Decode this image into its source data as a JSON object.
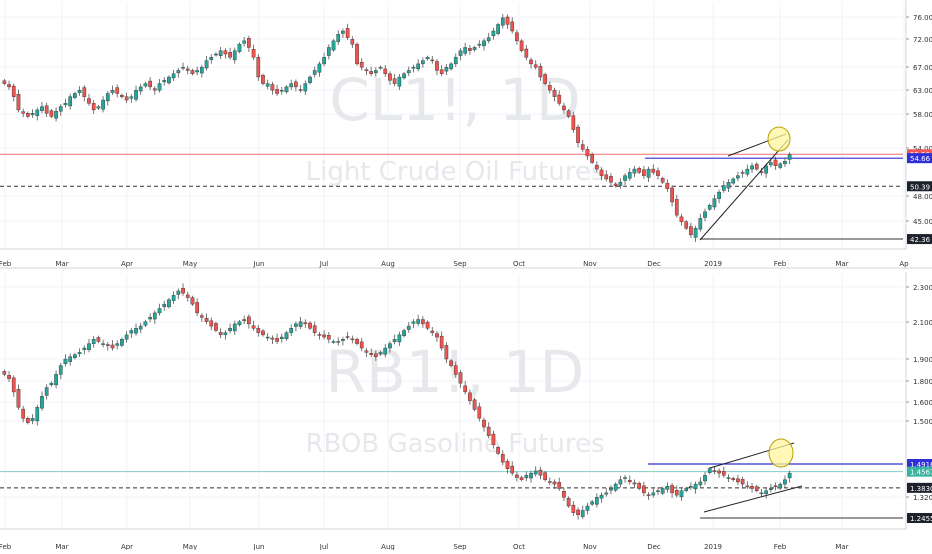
{
  "colors": {
    "up": "#26a69a",
    "down": "#ef5350",
    "wick": "#444444",
    "grid": "#f0f3fa",
    "axis_text": "#333333",
    "watermark": "#e6e8ec",
    "blue_line": "#3030d0",
    "red_line": "#f07070",
    "green_line": "#80cfc6",
    "circle_fill": "#fff59d",
    "circle_stroke": "#b8a000"
  },
  "chart_data": [
    {
      "type": "candlestick",
      "symbol": "CL1!, 1D",
      "title": "Light Crude Oil Futures",
      "y_ticks": [
        "76.00",
        "72.00",
        "67.00",
        "63.00",
        "58.00",
        "54.00",
        "48.00",
        "45.00"
      ],
      "ylim": [
        41,
        77.5
      ],
      "x_labels": [
        "Feb",
        "Mar",
        "Apr",
        "May",
        "Jun",
        "Jul",
        "Aug",
        "Sep",
        "Oct",
        "Nov",
        "Dec",
        "2019",
        "Feb",
        "Mar",
        "Ap"
      ],
      "price_badges": [
        {
          "label": "55.26",
          "value": 55.26,
          "style": "red"
        },
        {
          "label": "54.66",
          "value": 54.66,
          "style": "blue"
        },
        {
          "label": "50.39",
          "value": 50.39,
          "style": "dark"
        },
        {
          "label": "42.36",
          "value": 42.36,
          "style": "dark"
        }
      ],
      "levels": [
        {
          "value": 55.26,
          "kind": "red"
        },
        {
          "value": 54.66,
          "kind": "blue",
          "from_day": 300
        },
        {
          "value": 50.39,
          "kind": "dashed"
        },
        {
          "value": 42.36,
          "kind": "solid",
          "from_day": 328
        }
      ],
      "closes": [
        66.0,
        65.5,
        64.0,
        62.0,
        61.5,
        61.0,
        61.5,
        62.0,
        62.5,
        61.5,
        61.0,
        61.8,
        62.5,
        63.0,
        64.0,
        64.5,
        65.0,
        64.0,
        63.0,
        62.0,
        62.5,
        63.5,
        64.5,
        65.0,
        64.5,
        64.0,
        63.5,
        64.0,
        65.0,
        65.5,
        66.0,
        65.5,
        65.0,
        66.0,
        66.5,
        67.0,
        67.5,
        68.0,
        68.5,
        68.0,
        67.5,
        68.0,
        68.5,
        69.5,
        70.0,
        70.5,
        71.0,
        70.5,
        70.0,
        71.0,
        72.0,
        72.5,
        71.5,
        70.0,
        67.0,
        66.0,
        66.0,
        65.0,
        64.5,
        65.0,
        65.5,
        66.0,
        65.5,
        65.0,
        66.0,
        67.0,
        68.0,
        69.0,
        70.0,
        71.5,
        72.5,
        73.5,
        74.0,
        73.0,
        72.0,
        69.0,
        68.5,
        68.0,
        67.5,
        68.0,
        68.5,
        67.5,
        66.5,
        66.0,
        67.0,
        67.5,
        68.0,
        68.5,
        69.0,
        69.5,
        70.0,
        69.5,
        68.0,
        67.5,
        68.5,
        69.0,
        70.0,
        71.0,
        71.5,
        71.0,
        71.5,
        72.0,
        72.5,
        73.0,
        74.0,
        75.0,
        76.0,
        75.0,
        74.0,
        72.5,
        71.0,
        70.0,
        69.0,
        68.5,
        67.0,
        66.0,
        65.0,
        64.0,
        63.0,
        62.0,
        61.0,
        59.0,
        57.0,
        56.0,
        55.0,
        54.0,
        53.0,
        52.0,
        51.5,
        51.0,
        50.5,
        51.0,
        52.0,
        52.5,
        53.0,
        52.5,
        52.0,
        53.0,
        52.5,
        52.0,
        51.0,
        50.0,
        48.0,
        46.0,
        45.0,
        44.0,
        43.0,
        44.0,
        45.5,
        46.5,
        47.5,
        48.5,
        49.5,
        50.5,
        51.0,
        51.5,
        52.0,
        52.5,
        53.0,
        53.5,
        53.0,
        52.5,
        53.5,
        54.0,
        53.5,
        53.8,
        54.2,
        55.2
      ]
    },
    {
      "type": "candlestick",
      "symbol": "RB1!, 1D",
      "title": "RBOB Gasoline Futures",
      "y_ticks": [
        "2.3000",
        "2.1000",
        "1.9000",
        "1.8000",
        "1.6000",
        "1.5000",
        "1.3200"
      ],
      "ylim": [
        1.2,
        2.33
      ],
      "x_labels": [
        "Feb",
        "Mar",
        "Apr",
        "May",
        "Jun",
        "Jul",
        "Aug",
        "Sep",
        "Oct",
        "Nov",
        "Dec",
        "2019",
        "Feb",
        "Mar"
      ],
      "price_badges": [
        {
          "label": "1.4916",
          "value": 1.4916,
          "style": "blue"
        },
        {
          "label": "1.4567",
          "value": 1.4567,
          "style": "green"
        },
        {
          "label": "1.3830",
          "value": 1.383,
          "style": "dark"
        },
        {
          "label": "1.2455",
          "value": 1.2455,
          "style": "dark"
        }
      ],
      "levels": [
        {
          "value": 1.4916,
          "kind": "blue",
          "from_day": 300
        },
        {
          "value": 1.4567,
          "kind": "green"
        },
        {
          "value": 1.383,
          "kind": "dashed"
        },
        {
          "value": 1.2455,
          "kind": "solid",
          "from_day": 328
        }
      ],
      "closes": [
        1.9,
        1.88,
        1.82,
        1.75,
        1.7,
        1.68,
        1.7,
        1.75,
        1.8,
        1.84,
        1.86,
        1.9,
        1.94,
        1.97,
        1.98,
        1.99,
        2.0,
        2.02,
        2.04,
        2.06,
        2.05,
        2.04,
        2.03,
        2.02,
        2.04,
        2.06,
        2.08,
        2.1,
        2.11,
        2.12,
        2.14,
        2.16,
        2.18,
        2.2,
        2.22,
        2.24,
        2.26,
        2.28,
        2.27,
        2.25,
        2.22,
        2.18,
        2.16,
        2.14,
        2.12,
        2.1,
        2.08,
        2.09,
        2.11,
        2.13,
        2.14,
        2.15,
        2.13,
        2.11,
        2.09,
        2.08,
        2.07,
        2.06,
        2.05,
        2.07,
        2.09,
        2.11,
        2.13,
        2.14,
        2.13,
        2.11,
        2.09,
        2.08,
        2.07,
        2.06,
        2.05,
        2.05,
        2.06,
        2.07,
        2.06,
        2.04,
        2.02,
        2.0,
        1.99,
        1.98,
        2.0,
        2.02,
        2.04,
        2.06,
        2.08,
        2.1,
        2.12,
        2.14,
        2.15,
        2.13,
        2.11,
        2.09,
        2.07,
        2.02,
        1.97,
        1.94,
        1.9,
        1.86,
        1.82,
        1.78,
        1.74,
        1.7,
        1.66,
        1.62,
        1.58,
        1.54,
        1.5,
        1.47,
        1.45,
        1.43,
        1.42,
        1.44,
        1.45,
        1.46,
        1.44,
        1.42,
        1.41,
        1.4,
        1.38,
        1.34,
        1.3,
        1.27,
        1.26,
        1.28,
        1.3,
        1.32,
        1.34,
        1.35,
        1.36,
        1.38,
        1.4,
        1.42,
        1.43,
        1.41,
        1.4,
        1.38,
        1.36,
        1.35,
        1.36,
        1.37,
        1.38,
        1.39,
        1.36,
        1.35,
        1.37,
        1.38,
        1.39,
        1.4,
        1.41,
        1.44,
        1.47,
        1.46,
        1.45,
        1.44,
        1.43,
        1.42,
        1.41,
        1.4,
        1.39,
        1.38,
        1.37,
        1.36,
        1.37,
        1.38,
        1.39,
        1.4,
        1.42,
        1.45
      ]
    }
  ]
}
